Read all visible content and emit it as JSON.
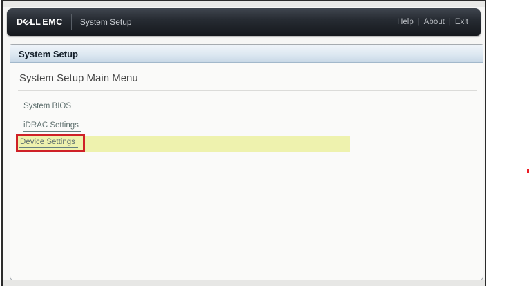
{
  "header": {
    "logo": {
      "d": "D",
      "e": "E",
      "ll": "LL",
      "emc": "EMC"
    },
    "app_title": "System Setup",
    "links": [
      {
        "label": "Help"
      },
      {
        "label": "About"
      },
      {
        "label": "Exit"
      }
    ],
    "link_separator": "|"
  },
  "panel": {
    "title_bar": "System Setup",
    "heading": "System Setup Main Menu",
    "menu": [
      {
        "label": "System BIOS",
        "highlighted": false
      },
      {
        "label": "iDRAC Settings",
        "highlighted": false
      },
      {
        "label": "Device Settings",
        "highlighted": true
      }
    ]
  },
  "colors": {
    "highlight_yellow": "#EEF2AE",
    "annotation_red": "#CF2127",
    "link_teal": "#5E6F6E",
    "titlebar_gradient_top": "#EEF3F9",
    "titlebar_gradient_bottom": "#C8D8E7",
    "header_dark": "#15181D"
  }
}
